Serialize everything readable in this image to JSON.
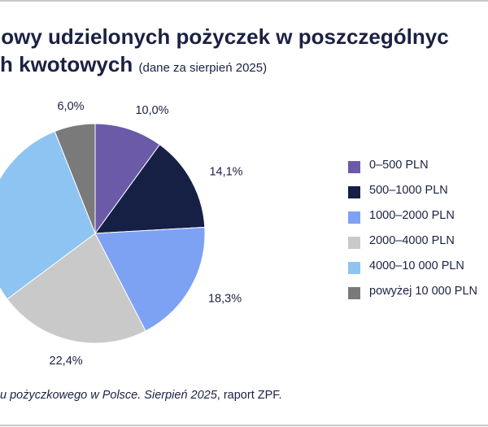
{
  "title_line1": "iowy udzielonych pożyczek w poszczególnyc",
  "title_line2": "h kwotowych",
  "subtitle": "(dane za sierpień 2025)",
  "source_italic": "u pożyczkowego w Polsce. Sierpień 2025",
  "source_rest": ", raport ZPF.",
  "chart_data": {
    "type": "pie",
    "categories": [
      "0–500 PLN",
      "500–1000 PLN",
      "1000–2000 PLN",
      "2000–4000 PLN",
      "4000–10 000 PLN",
      "powyżej 10 000 PLN"
    ],
    "values": [
      10.0,
      14.1,
      18.3,
      22.4,
      29.2,
      6.0
    ],
    "labels": [
      "10,0%",
      "14,1%",
      "18,3%",
      "22,4%",
      "",
      "6,0%"
    ],
    "colors": [
      "#6b5aa8",
      "#161f44",
      "#7da2f3",
      "#c9c9c9",
      "#8ec4f1",
      "#7a7a7a"
    ],
    "legend_position": "right"
  }
}
